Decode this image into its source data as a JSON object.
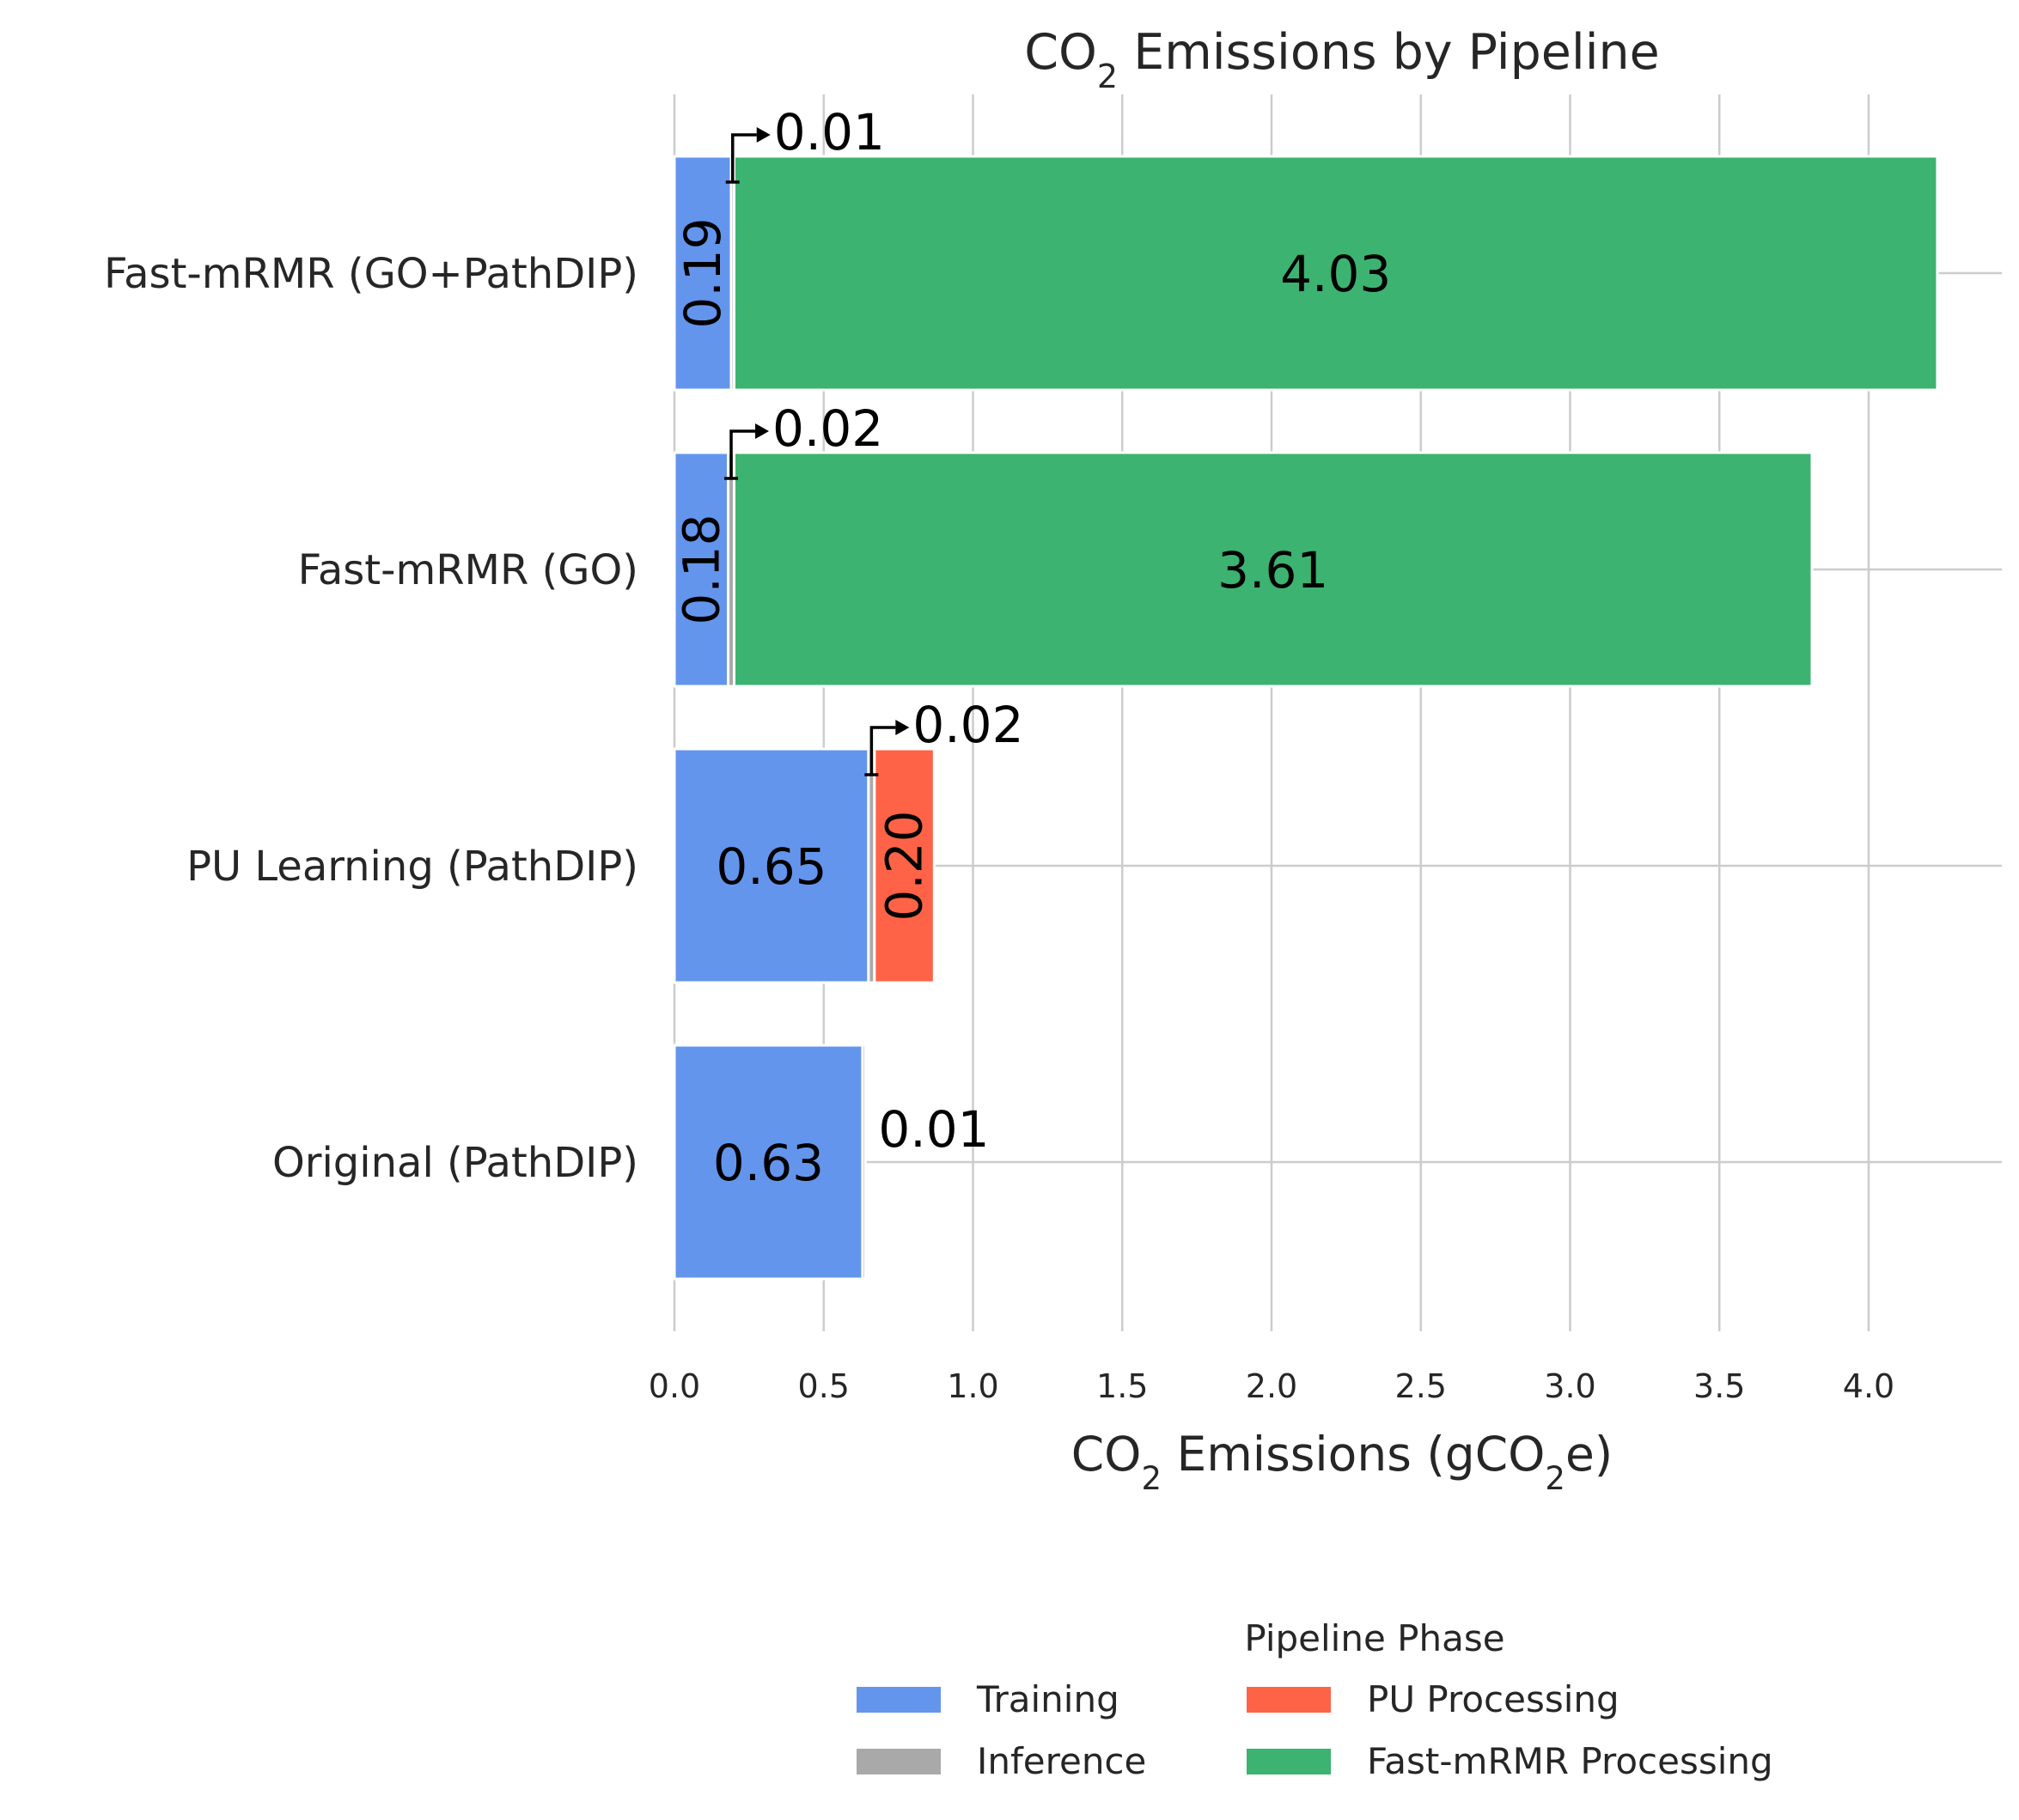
{
  "chart_data": {
    "type": "bar",
    "orientation": "horizontal",
    "stacked": true,
    "title": {
      "pre": "CO",
      "sub": "2",
      "post": " Emissions by Pipeline"
    },
    "xlabel": {
      "p1": "CO",
      "s1": "2",
      "p2": " Emissions (gCO",
      "s2": "2",
      "p3": "e)"
    },
    "ylabel": "",
    "xlim": [
      0,
      4.45
    ],
    "xticks": [
      "0.0",
      "0.5",
      "1.0",
      "1.5",
      "2.0",
      "2.5",
      "3.0",
      "3.5",
      "4.0"
    ],
    "grid": true,
    "categories": [
      "Fast-mRMR (GO+PathDIP)",
      "Fast-mRMR (GO)",
      "PU Learning (PathDIP)",
      "Original (PathDIP)"
    ],
    "series": [
      {
        "name": "Training",
        "color": "#6495ED",
        "values": [
          0.19,
          0.18,
          0.65,
          0.63
        ],
        "labels": [
          "0.19",
          "0.18",
          "0.65",
          "0.63"
        ]
      },
      {
        "name": "Inference",
        "color": "#A9A9A9",
        "values": [
          0.01,
          0.02,
          0.02,
          0.01
        ],
        "labels": [
          "0.01",
          "0.02",
          "0.02",
          "0.01"
        ]
      },
      {
        "name": "PU Processing",
        "color": "#FF6347",
        "values": [
          0,
          0,
          0.2,
          0
        ],
        "labels": [
          "",
          "",
          "0.20",
          ""
        ]
      },
      {
        "name": "Fast-mRMR Processing",
        "color": "#3CB371",
        "values": [
          4.03,
          3.61,
          0,
          0
        ],
        "labels": [
          "4.03",
          "3.61",
          "",
          ""
        ]
      }
    ],
    "legend": {
      "title": "Pipeline Phase",
      "position": "bottom-right",
      "items": [
        {
          "label": "Training",
          "color": "#6495ED"
        },
        {
          "label": "PU Processing",
          "color": "#FF6347"
        },
        {
          "label": "Inference",
          "color": "#A9A9A9"
        },
        {
          "label": "Fast-mRMR Processing",
          "color": "#3CB371"
        }
      ]
    }
  }
}
